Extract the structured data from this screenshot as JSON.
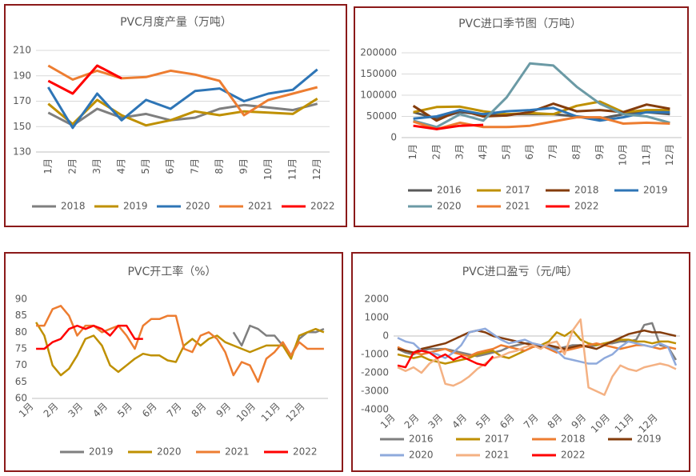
{
  "chart_data": [
    {
      "type": "line",
      "title": "PVC月度产量（万吨）",
      "categories": [
        "1月",
        "2月",
        "3月",
        "4月",
        "5月",
        "6月",
        "7月",
        "8月",
        "9月",
        "10月",
        "11月",
        "12月"
      ],
      "ylim": [
        130,
        210
      ],
      "yticks": [
        130,
        150,
        170,
        190,
        210
      ],
      "grid": true,
      "legend": "bottom",
      "series": [
        {
          "name": "2018",
          "color": "#7f7f7f",
          "values": [
            161,
            151,
            164,
            157,
            160,
            155,
            157,
            164,
            167,
            165,
            163,
            168
          ]
        },
        {
          "name": "2019",
          "color": "#bf9000",
          "values": [
            168,
            152,
            171,
            159,
            151,
            155,
            162,
            159,
            162,
            161,
            160,
            172
          ]
        },
        {
          "name": "2020",
          "color": "#2e75b6",
          "values": [
            181,
            149,
            176,
            155,
            171,
            164,
            178,
            180,
            170,
            176,
            179,
            195
          ]
        },
        {
          "name": "2021",
          "color": "#ed7d31",
          "values": [
            198,
            187,
            194,
            188,
            189,
            194,
            191,
            186,
            159,
            171,
            176,
            181
          ]
        },
        {
          "name": "2022",
          "color": "#ff0000",
          "values": [
            186,
            176,
            198,
            188,
            null,
            null,
            null,
            null,
            null,
            null,
            null,
            null
          ]
        }
      ]
    },
    {
      "type": "line",
      "title": "PVC进口季节图（万吨）",
      "categories": [
        "1月",
        "2月",
        "3月",
        "4月",
        "5月",
        "6月",
        "7月",
        "8月",
        "9月",
        "10月",
        "11月",
        "12月"
      ],
      "ylim": [
        0,
        200000
      ],
      "yticks": [
        0,
        50000,
        100000,
        150000,
        200000
      ],
      "grid": true,
      "legend": "bottom",
      "series": [
        {
          "name": "2016",
          "color": "#595959",
          "values": [
            60000,
            45000,
            60000,
            55000,
            55000,
            55000,
            55000,
            50000,
            45000,
            55000,
            60000,
            55000
          ]
        },
        {
          "name": "2017",
          "color": "#bf9000",
          "values": [
            60000,
            72000,
            73000,
            62000,
            55000,
            58000,
            55000,
            75000,
            85000,
            60000,
            65000,
            65000
          ]
        },
        {
          "name": "2018",
          "color": "#843c0c",
          "values": [
            75000,
            40000,
            65000,
            50000,
            52000,
            60000,
            80000,
            62000,
            65000,
            60000,
            78000,
            68000
          ]
        },
        {
          "name": "2019",
          "color": "#2e75b6",
          "values": [
            45000,
            50000,
            65000,
            55000,
            62000,
            65000,
            70000,
            50000,
            40000,
            48000,
            60000,
            60000
          ]
        },
        {
          "name": "2020",
          "color": "#6b9aa5",
          "values": [
            40000,
            25000,
            55000,
            40000,
            95000,
            175000,
            170000,
            120000,
            80000,
            55000,
            50000,
            35000
          ]
        },
        {
          "name": "2021",
          "color": "#ed7d31",
          "values": [
            38000,
            20000,
            35000,
            25000,
            25000,
            28000,
            38000,
            48000,
            48000,
            33000,
            35000,
            33000
          ]
        },
        {
          "name": "2022",
          "color": "#ff0000",
          "values": [
            28000,
            20000,
            28000,
            30000,
            null,
            null,
            null,
            null,
            null,
            null,
            null,
            null
          ]
        }
      ]
    },
    {
      "type": "line",
      "title": "PVC开工率（%）",
      "categories": [
        "1月",
        null,
        null,
        "2月",
        null,
        null,
        "3月",
        null,
        null,
        "4月",
        null,
        null,
        "5月",
        null,
        null,
        "6月",
        null,
        null,
        "7月",
        null,
        null,
        "8月",
        null,
        null,
        "9月",
        null,
        null,
        "10月",
        null,
        null,
        "11月",
        null,
        null,
        "12月",
        null,
        null
      ],
      "ylim": [
        60,
        90
      ],
      "yticks": [
        60,
        65,
        70,
        75,
        80,
        85,
        90
      ],
      "grid": false,
      "legend": "bottom",
      "series": [
        {
          "name": "2019",
          "color": "#7f7f7f",
          "values": [
            null,
            null,
            null,
            null,
            null,
            null,
            null,
            null,
            null,
            null,
            null,
            null,
            null,
            null,
            null,
            null,
            null,
            null,
            null,
            null,
            null,
            null,
            null,
            null,
            80,
            76,
            82,
            81,
            79,
            79,
            76,
            73,
            78,
            80,
            80,
            81
          ]
        },
        {
          "name": "2020",
          "color": "#bf9000",
          "values": [
            83,
            79,
            70,
            67,
            69,
            73,
            78,
            79,
            76,
            70,
            68,
            70,
            72,
            73.5,
            73,
            73,
            71.5,
            71,
            76,
            78,
            76,
            78,
            79,
            77,
            76,
            75,
            74,
            75,
            76,
            76,
            76,
            72,
            79,
            80,
            81,
            80
          ]
        },
        {
          "name": "2021",
          "color": "#ed7d31",
          "values": [
            82,
            82,
            87,
            88,
            85,
            79,
            82,
            82,
            80,
            81,
            82,
            79,
            75,
            82,
            84,
            84,
            85,
            85,
            75,
            74,
            79,
            80,
            78,
            74,
            67,
            71,
            70,
            65,
            72,
            74,
            77,
            73,
            77,
            75,
            75,
            75
          ]
        },
        {
          "name": "2022",
          "color": "#ff0000",
          "values": [
            75,
            75,
            77,
            78,
            81,
            82,
            81,
            82,
            81,
            79,
            82,
            82,
            78,
            78,
            null,
            null,
            null,
            null,
            null,
            null,
            null,
            null,
            null,
            null,
            null,
            null,
            null,
            null,
            null,
            null,
            null,
            null,
            null,
            null,
            null,
            null
          ]
        }
      ]
    },
    {
      "type": "line",
      "title": "PVC进口盈亏（元/吨）",
      "categories": [
        "1月",
        null,
        null,
        "2月",
        null,
        null,
        "3月",
        null,
        null,
        "4月",
        null,
        null,
        "5月",
        null,
        null,
        "6月",
        null,
        null,
        "7月",
        null,
        null,
        "8月",
        null,
        null,
        "9月",
        null,
        null,
        "10月",
        null,
        null,
        "11月",
        null,
        null,
        "12月",
        null,
        null
      ],
      "ylim": [
        -4000,
        2000
      ],
      "yticks": [
        -4000,
        -3000,
        -2000,
        -1000,
        0,
        1000,
        2000
      ],
      "grid": false,
      "legend": "bottom",
      "series": [
        {
          "name": "2016",
          "color": "#7f7f7f",
          "values": [
            -700,
            -900,
            -1000,
            -800,
            -700,
            -700,
            -700,
            -800,
            -900,
            -1000,
            -1100,
            -1000,
            -900,
            -800,
            -600,
            -500,
            -400,
            -400,
            -500,
            -600,
            -700,
            -600,
            -500,
            -500,
            -600,
            -500,
            -400,
            -400,
            -300,
            -300,
            -200,
            600,
            700,
            -500,
            -600,
            -1300
          ]
        },
        {
          "name": "2017",
          "color": "#bf9000",
          "values": [
            -1000,
            -1100,
            -1200,
            -1100,
            -1300,
            -1400,
            -1500,
            -1400,
            -1300,
            -1200,
            -1000,
            -900,
            -800,
            -1100,
            -1200,
            -1000,
            -800,
            -600,
            -500,
            -300,
            200,
            0,
            300,
            -200,
            -400,
            -500,
            -400,
            -300,
            -200,
            -200,
            -300,
            -300,
            -400,
            -300,
            -300,
            -400
          ]
        },
        {
          "name": "2018",
          "color": "#ed7d31",
          "values": [
            -600,
            -800,
            -900,
            -1000,
            -900,
            -800,
            -700,
            -900,
            -1000,
            -1100,
            -900,
            -800,
            -700,
            -500,
            -600,
            -700,
            -800,
            -600,
            -500,
            -700,
            -900,
            -800,
            -700,
            -600,
            -500,
            -400,
            -500,
            -600,
            -700,
            -600,
            -500,
            -500,
            -600,
            -700,
            -600,
            -700
          ]
        },
        {
          "name": "2019",
          "color": "#843c0c",
          "values": [
            -700,
            -800,
            -900,
            -700,
            -600,
            -500,
            -400,
            -200,
            0,
            200,
            300,
            200,
            0,
            -100,
            -200,
            -300,
            -400,
            -500,
            -600,
            -500,
            -600,
            -700,
            -600,
            -500,
            -600,
            -700,
            -500,
            -300,
            -100,
            100,
            200,
            300,
            200,
            200,
            100,
            0
          ]
        },
        {
          "name": "2020",
          "color": "#8faadc",
          "values": [
            -100,
            -300,
            -400,
            -800,
            -900,
            -1000,
            -1200,
            -900,
            -500,
            200,
            300,
            400,
            100,
            -200,
            -400,
            -300,
            -200,
            -400,
            -500,
            -600,
            -800,
            -1200,
            -1300,
            -1400,
            -1500,
            -1500,
            -1200,
            -1000,
            -600,
            -300,
            -400,
            -500,
            -600,
            -400,
            -600,
            -1600
          ]
        },
        {
          "name": "2021",
          "color": "#f4b183",
          "values": [
            -1700,
            -1900,
            -1700,
            -2000,
            -1500,
            -1200,
            -2600,
            -2700,
            -2500,
            -2200,
            -1800,
            -1500,
            -1200,
            -1100,
            -900,
            -800,
            -600,
            -500,
            -700,
            -400,
            -300,
            -1000,
            300,
            900,
            -2800,
            -3000,
            -3200,
            -2200,
            -1600,
            -1800,
            -1900,
            -1700,
            -1600,
            -1500,
            -1600,
            -1800
          ]
        },
        {
          "name": "2022",
          "color": "#ff0000",
          "values": [
            -1600,
            -1700,
            -900,
            -800,
            -900,
            -1200,
            -1000,
            -1300,
            -1100,
            -1300,
            -1500,
            -1600,
            -1100,
            null,
            null,
            null,
            null,
            null,
            null,
            null,
            null,
            null,
            null,
            null,
            null,
            null,
            null,
            null,
            null,
            null,
            null,
            null,
            null,
            null,
            null,
            null
          ]
        }
      ]
    }
  ]
}
